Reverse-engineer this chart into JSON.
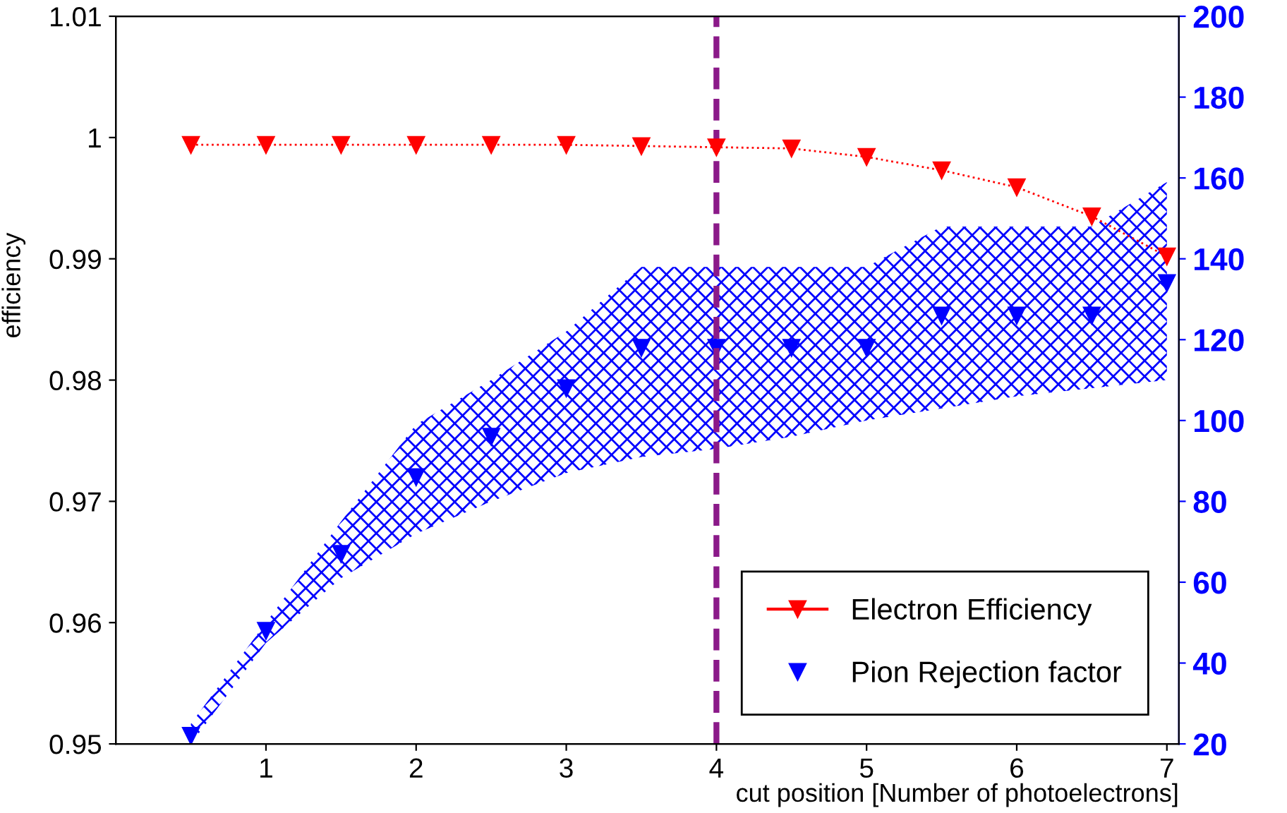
{
  "chart_data": {
    "type": "line",
    "xlabel": "cut position [Number of photoelectrons]",
    "ylabel": "efficiency",
    "x": [
      0.5,
      1,
      1.5,
      2,
      2.5,
      3,
      3.5,
      4,
      4.5,
      5,
      5.5,
      6,
      6.5,
      7
    ],
    "xlim": [
      0,
      7.08
    ],
    "xticks": [
      1,
      2,
      3,
      4,
      5,
      6,
      7
    ],
    "ylim": [
      0.95,
      1.01
    ],
    "yticks": [
      0.95,
      0.96,
      0.97,
      0.98,
      0.99,
      {
        "value": 1.0,
        "label": "1"
      },
      1.01
    ],
    "y2lim": [
      20,
      200
    ],
    "y2ticks": [
      20,
      40,
      60,
      80,
      100,
      120,
      140,
      160,
      180,
      200
    ],
    "series": [
      {
        "name": "Electron Efficiency",
        "color": "#ff0000",
        "line_style": "dotted",
        "values": [
          0.9994,
          0.9994,
          0.9994,
          0.9994,
          0.9994,
          0.9994,
          0.9993,
          0.9992,
          0.9991,
          0.9984,
          0.9973,
          0.9959,
          0.9935,
          0.9902
        ]
      },
      {
        "name": "Pion Rejection factor",
        "color": "#0000ff",
        "axis": "y2",
        "type": "scatter",
        "values": [
          22,
          48,
          67,
          86,
          96,
          108,
          118,
          118,
          118,
          118,
          126,
          126,
          126,
          134
        ],
        "lower": [
          20,
          45,
          61,
          72,
          80,
          87,
          91,
          93,
          96,
          100,
          103,
          106,
          108,
          110
        ],
        "upper": [
          25,
          50,
          75,
          99,
          110,
          122,
          138,
          138,
          138,
          138,
          148,
          148,
          148,
          159
        ]
      }
    ],
    "marker": "triangle",
    "grid": false,
    "legend": "lower right",
    "ref_lines": [
      {
        "axis": "x",
        "value": 4,
        "color": "#8b1a89",
        "line_style": "dashed"
      }
    ]
  }
}
